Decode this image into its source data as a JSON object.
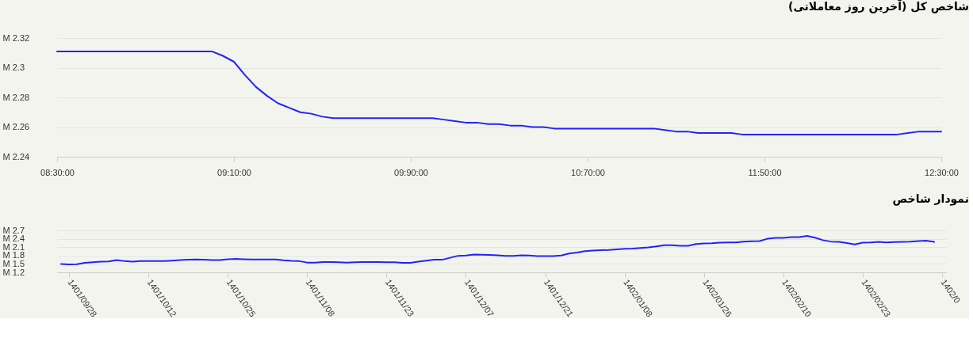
{
  "chart_data": [
    {
      "type": "line",
      "title": "شاخص کل (آخرین روز معاملاتی)",
      "categories": [
        "08:30:00",
        null,
        null,
        null,
        null,
        null,
        null,
        null,
        null,
        null,
        null,
        null,
        null,
        null,
        null,
        null,
        "09:10:00",
        null,
        null,
        null,
        null,
        null,
        null,
        null,
        null,
        null,
        null,
        null,
        null,
        null,
        null,
        null,
        "09:90:00",
        null,
        null,
        null,
        null,
        null,
        null,
        null,
        null,
        null,
        null,
        null,
        null,
        null,
        null,
        null,
        "10:70:00",
        null,
        null,
        null,
        null,
        null,
        null,
        null,
        null,
        null,
        null,
        null,
        null,
        null,
        null,
        null,
        "11:50:00",
        null,
        null,
        null,
        null,
        null,
        null,
        null,
        null,
        null,
        null,
        null,
        null,
        null,
        null,
        null,
        "12:30:00"
      ],
      "ylim": [
        2.24,
        2.32
      ],
      "yticks": [
        {
          "value": 2.24,
          "label": "2.24 M"
        },
        {
          "value": 2.26,
          "label": "2.26 M"
        },
        {
          "value": 2.28,
          "label": "2.28 M"
        },
        {
          "value": 2.3,
          "label": "2.3 M"
        },
        {
          "value": 2.32,
          "label": "2.32 M"
        }
      ],
      "grid": "y",
      "series": [
        {
          "color": "#2222ff",
          "values": [
            2.311,
            2.311,
            2.311,
            2.311,
            2.311,
            2.311,
            2.311,
            2.311,
            2.311,
            2.311,
            2.311,
            2.311,
            2.311,
            2.311,
            2.311,
            2.308,
            2.304,
            2.295,
            2.287,
            2.281,
            2.276,
            2.273,
            2.27,
            2.269,
            2.267,
            2.266,
            2.266,
            2.266,
            2.266,
            2.266,
            2.266,
            2.266,
            2.266,
            2.266,
            2.266,
            2.265,
            2.264,
            2.263,
            2.263,
            2.262,
            2.262,
            2.261,
            2.261,
            2.26,
            2.26,
            2.259,
            2.259,
            2.259,
            2.259,
            2.259,
            2.259,
            2.259,
            2.259,
            2.259,
            2.259,
            2.258,
            2.257,
            2.257,
            2.256,
            2.256,
            2.256,
            2.256,
            2.255,
            2.255,
            2.255,
            2.255,
            2.255,
            2.255,
            2.255,
            2.255,
            2.255,
            2.255,
            2.255,
            2.255,
            2.255,
            2.255,
            2.255,
            2.256,
            2.257,
            2.257,
            2.257
          ]
        }
      ]
    },
    {
      "type": "line",
      "title": "نمودار شاخص",
      "categories": [
        null,
        "1401/09/28",
        null,
        null,
        null,
        null,
        null,
        null,
        null,
        null,
        null,
        "1401/10/12",
        null,
        null,
        null,
        null,
        null,
        null,
        null,
        null,
        null,
        "1401/10/25",
        null,
        null,
        null,
        null,
        null,
        null,
        null,
        null,
        null,
        "1401/11/08",
        null,
        null,
        null,
        null,
        null,
        null,
        null,
        null,
        null,
        "1401/11/23",
        null,
        null,
        null,
        null,
        null,
        null,
        null,
        null,
        null,
        "1401/12/07",
        null,
        null,
        null,
        null,
        null,
        null,
        null,
        null,
        null,
        "1401/12/21",
        null,
        null,
        null,
        null,
        null,
        null,
        null,
        null,
        null,
        "1402/01/08",
        null,
        null,
        null,
        null,
        null,
        null,
        null,
        null,
        null,
        "1402/01/26",
        null,
        null,
        null,
        null,
        null,
        null,
        null,
        null,
        null,
        "1402/02/10",
        null,
        null,
        null,
        null,
        null,
        null,
        null,
        null,
        null,
        "1402/02/23",
        null,
        null,
        null,
        null,
        null,
        null,
        null,
        null,
        null,
        "1402/0"
      ],
      "ylim": [
        1.2,
        2.7
      ],
      "yticks": [
        {
          "value": 1.2,
          "label": "1.2 M"
        },
        {
          "value": 1.5,
          "label": "1.5 M"
        },
        {
          "value": 1.8,
          "label": "1.8 M"
        },
        {
          "value": 2.1,
          "label": "2.1 M"
        },
        {
          "value": 2.4,
          "label": "2.4 M"
        },
        {
          "value": 2.7,
          "label": "2.7 M"
        }
      ],
      "grid": "y",
      "series": [
        {
          "color": "#2222ff",
          "values": [
            1.5,
            1.48,
            1.49,
            1.54,
            1.56,
            1.58,
            1.59,
            1.64,
            1.6,
            1.58,
            1.6,
            1.6,
            1.6,
            1.6,
            1.62,
            1.64,
            1.65,
            1.66,
            1.65,
            1.64,
            1.64,
            1.67,
            1.68,
            1.67,
            1.66,
            1.66,
            1.66,
            1.66,
            1.63,
            1.61,
            1.6,
            1.55,
            1.55,
            1.57,
            1.57,
            1.56,
            1.55,
            1.56,
            1.57,
            1.57,
            1.57,
            1.56,
            1.56,
            1.54,
            1.54,
            1.58,
            1.62,
            1.65,
            1.65,
            1.72,
            1.79,
            1.8,
            1.84,
            1.83,
            1.82,
            1.81,
            1.79,
            1.79,
            1.81,
            1.8,
            1.78,
            1.78,
            1.78,
            1.8,
            1.87,
            1.91,
            1.96,
            1.98,
            1.99,
            2.0,
            2.02,
            2.04,
            2.05,
            2.07,
            2.09,
            2.13,
            2.17,
            2.17,
            2.15,
            2.15,
            2.21,
            2.23,
            2.24,
            2.26,
            2.27,
            2.27,
            2.3,
            2.31,
            2.32,
            2.4,
            2.43,
            2.43,
            2.46,
            2.46,
            2.5,
            2.44,
            2.35,
            2.3,
            2.29,
            2.25,
            2.2,
            2.26,
            2.27,
            2.29,
            2.27,
            2.28,
            2.29,
            2.3,
            2.32,
            2.33,
            2.29,
            null
          ]
        }
      ]
    }
  ]
}
